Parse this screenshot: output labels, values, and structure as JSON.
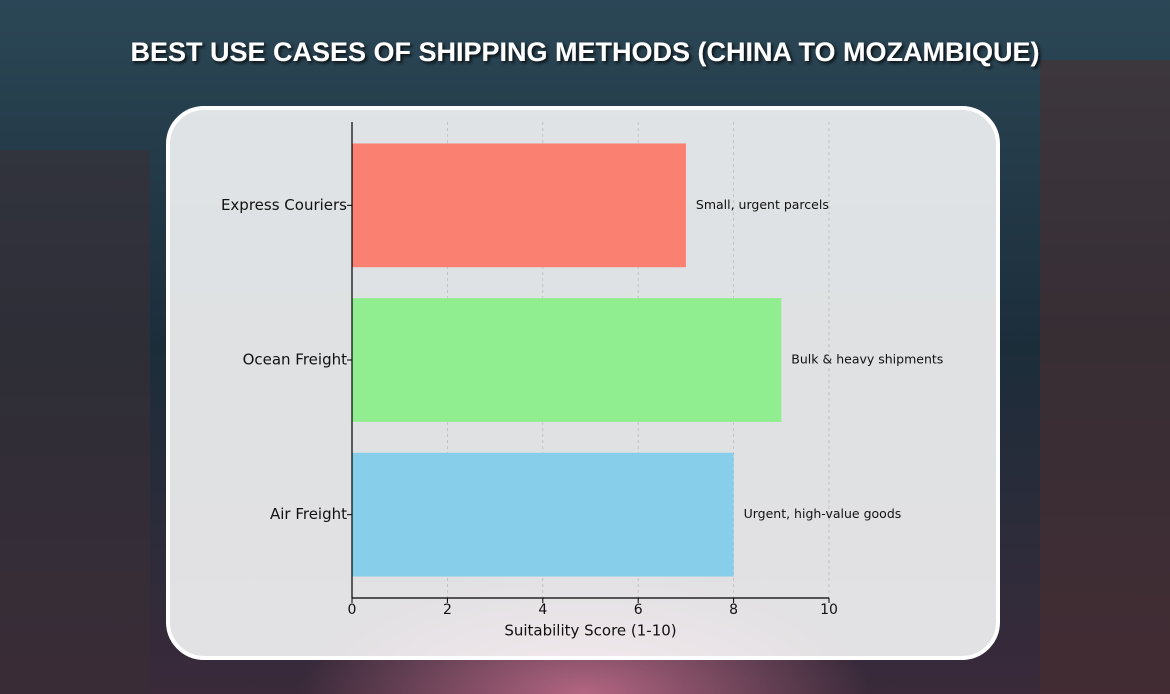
{
  "chart_data": {
    "type": "barh",
    "title": "BEST USE CASES OF SHIPPING METHODS (CHINA TO MOZAMBIQUE)",
    "xlabel": "Suitability Score (1-10)",
    "categories": [
      "Express Couriers",
      "Ocean Freight",
      "Air Freight"
    ],
    "values": [
      7,
      9,
      8
    ],
    "colors": [
      "#fa8072",
      "#90ee90",
      "#87ceeb"
    ],
    "annotations": [
      "Small, urgent parcels",
      "Bulk & heavy shipments",
      "Urgent, high-value goods"
    ],
    "xlim": [
      0,
      10
    ],
    "xticks": [
      0,
      2,
      4,
      6,
      8,
      10
    ],
    "grid": true
  }
}
